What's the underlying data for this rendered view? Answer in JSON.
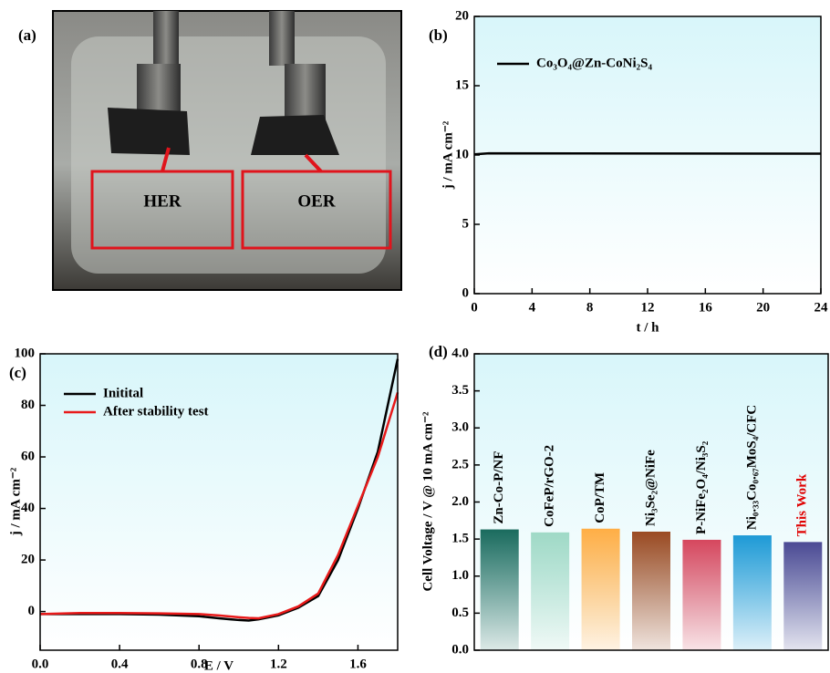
{
  "chart_data": [
    {
      "type": "image",
      "panel_label": "(a)",
      "annotations": [
        "HER",
        "OER"
      ]
    },
    {
      "type": "line",
      "panel_label": "(b)",
      "xlabel": "t / h",
      "ylabel": "j / mA cm⁻²",
      "x": [
        0,
        1,
        24
      ],
      "series": [
        {
          "name": "Co₃O₄@Zn-CoNi₂S₄",
          "color": "#000000",
          "values": [
            10.05,
            10.12,
            10.1
          ]
        }
      ],
      "xlim": [
        0,
        24
      ],
      "xticks": [
        0,
        4,
        8,
        12,
        16,
        20,
        24
      ],
      "ylim": [
        0,
        20
      ],
      "yticks": [
        0,
        5,
        10,
        15,
        20
      ],
      "legend": "upper left"
    },
    {
      "type": "line",
      "panel_label": "(c)",
      "xlabel": "E / V",
      "ylabel": "j / mA cm⁻²",
      "x": [
        0,
        0.2,
        0.4,
        0.6,
        0.8,
        0.9,
        1.0,
        1.05,
        1.1,
        1.2,
        1.3,
        1.4,
        1.5,
        1.6,
        1.7,
        1.8
      ],
      "series": [
        {
          "name": "Initital",
          "color": "#000000",
          "values": [
            -1,
            -1,
            -1,
            -1.2,
            -1.8,
            -2.6,
            -3.3,
            -3.5,
            -3,
            -1.5,
            1.5,
            6,
            20,
            40,
            62,
            98
          ]
        },
        {
          "name": "After stability test",
          "color": "#e81a1a",
          "values": [
            -1,
            -0.6,
            -0.6,
            -0.7,
            -1,
            -1.5,
            -2.2,
            -2.5,
            -2.6,
            -1,
            2,
            7,
            22,
            41,
            60,
            85
          ]
        }
      ],
      "xlim": [
        0,
        1.8
      ],
      "xticks": [
        {
          "value": 0,
          "label": "0.0"
        },
        0.4,
        0.8,
        1.2,
        1.6
      ],
      "ylim": [
        -15,
        100
      ],
      "yticks": [
        0,
        20,
        40,
        60,
        80,
        100
      ],
      "legend": "upper left"
    },
    {
      "type": "bar",
      "panel_label": "(d)",
      "ylabel": "Cell Voltage / V @ 10 mA cm⁻²",
      "categories": [
        "Zn-Co-P/NF",
        "CoFeP/rGO-2",
        "CoP/TM",
        "Ni₃Se₂@NiFe",
        "P-NiFe₂O₄/Ni₃S₂",
        "Ni₀.₃₃Co₀.₆₇MoS₄/CFC",
        "This Work"
      ],
      "values": [
        1.63,
        1.59,
        1.64,
        1.6,
        1.49,
        1.55,
        1.46
      ],
      "colors": [
        "#1a6b5e",
        "#9fd9c6",
        "#ffae45",
        "#9a4a22",
        "#d6475e",
        "#1e9ad6",
        "#4b4a94"
      ],
      "label_colors": [
        "#000000",
        "#000000",
        "#000000",
        "#000000",
        "#000000",
        "#000000",
        "#e00000"
      ],
      "ylim": [
        0,
        4
      ],
      "yticks": [
        {
          "value": 0,
          "label": "0.0"
        },
        0.5,
        {
          "value": 1,
          "label": "1.0"
        },
        1.5,
        {
          "value": 2,
          "label": "2.0"
        },
        2.5,
        {
          "value": 3,
          "label": "3.0"
        },
        3.5,
        {
          "value": 4,
          "label": "4.0"
        }
      ]
    }
  ]
}
